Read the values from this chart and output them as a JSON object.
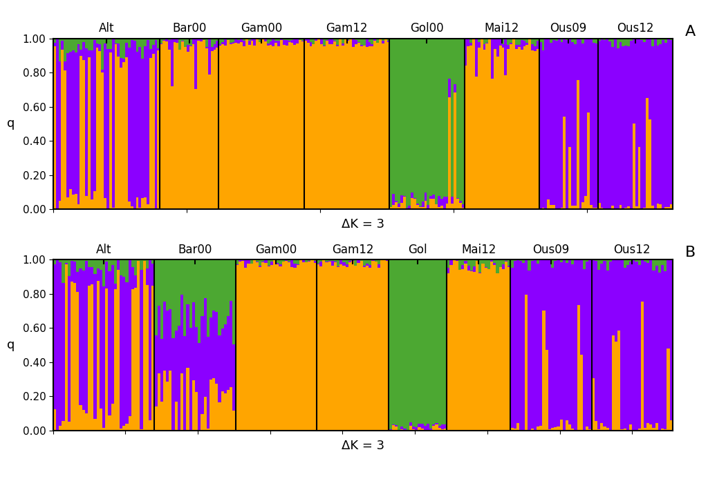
{
  "colors": [
    "#FFA500",
    "#8B00FF",
    "#4CA832"
  ],
  "group_labels_A": [
    "Alt",
    "Bar00",
    "Gam00",
    "Gam12",
    "Gol00",
    "Mai12",
    "Ous09",
    "Ous12"
  ],
  "group_labels_B": [
    "Alt",
    "Bar00",
    "Gam00",
    "Gam12",
    "Gol",
    "Mai12",
    "Ous09",
    "Ous12"
  ],
  "group_sizes_A": [
    40,
    22,
    32,
    32,
    28,
    28,
    22,
    28
  ],
  "group_sizes_B": [
    35,
    28,
    28,
    25,
    20,
    22,
    28,
    28
  ],
  "xlabel": "ΔK = 3",
  "ylabel": "q",
  "label_A": "A",
  "label_B": "B",
  "background_color": "#ffffff",
  "yticks": [
    0.0,
    0.2,
    0.4,
    0.6,
    0.8,
    1.0
  ]
}
